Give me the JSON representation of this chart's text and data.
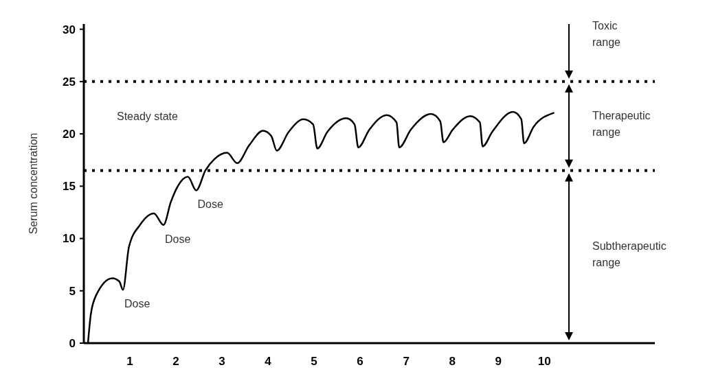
{
  "chart_data": {
    "type": "line",
    "ylabel": "Serum concentration",
    "xlim": [
      0,
      12.4
    ],
    "ylim": [
      0,
      30.5
    ],
    "xticks": [
      1,
      2,
      3,
      4,
      5,
      6,
      7,
      8,
      9,
      10
    ],
    "yticks": [
      0,
      5,
      10,
      15,
      20,
      25,
      30
    ],
    "line_style": "solid",
    "series": [
      {
        "color": "#000000",
        "x": [
          0.09,
          0.15,
          0.27,
          0.62,
          0.77,
          0.85,
          0.98,
          1.22,
          1.52,
          1.73,
          1.89,
          2.04,
          2.26,
          2.44,
          2.64,
          2.84,
          3.11,
          3.33,
          3.59,
          3.89,
          4.07,
          4.19,
          4.45,
          4.77,
          4.98,
          5.07,
          5.29,
          5.7,
          5.88,
          5.96,
          6.2,
          6.58,
          6.79,
          6.85,
          7.1,
          7.54,
          7.74,
          7.81,
          8.01,
          8.39,
          8.6,
          8.66,
          8.87,
          9.32,
          9.5,
          9.56,
          9.77,
          10.2
        ],
        "values": [
          0,
          2.7,
          4.6,
          6.2,
          5.9,
          5.1,
          9.2,
          11.3,
          12.4,
          11.3,
          13.5,
          15,
          15.9,
          14.6,
          16.5,
          17.6,
          18.2,
          17.2,
          18.9,
          20.3,
          19.8,
          18.4,
          20.2,
          21.4,
          20.9,
          18.6,
          20.2,
          21.5,
          20.9,
          18.7,
          20.4,
          21.8,
          21.1,
          18.7,
          20.4,
          21.9,
          21.2,
          19.2,
          20.4,
          21.7,
          21.1,
          18.8,
          20.2,
          22.1,
          21.4,
          19.1,
          20.7,
          22
        ]
      }
    ],
    "ref_lines": [
      {
        "axis": "y",
        "value": 25,
        "line_style": "dotted",
        "color": "#000000"
      },
      {
        "axis": "y",
        "value": 16.5,
        "line_style": "dotted",
        "color": "#000000"
      }
    ],
    "annotations": [
      "Steady state",
      "Toxic range",
      "Therapeutic range",
      "Subtherapeutic range",
      {
        "text": "Dose",
        "x": 0.85,
        "y": 5.1
      },
      {
        "text": "Dose",
        "x": 1.73,
        "y": 11.3
      },
      {
        "text": "Dose",
        "x": 2.44,
        "y": 14.6
      }
    ]
  }
}
